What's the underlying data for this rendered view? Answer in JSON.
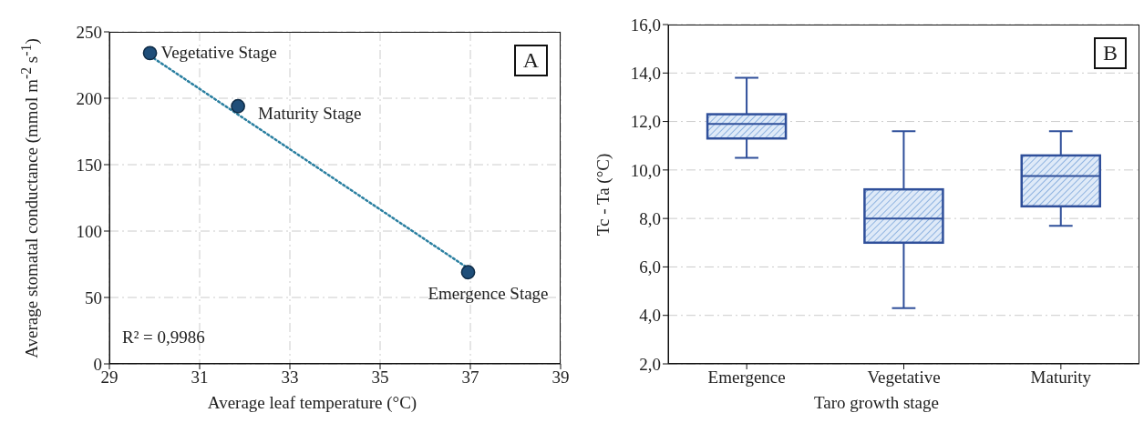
{
  "chart_data": [
    {
      "type": "scatter",
      "xlabel": "Average leaf temperature (°C)",
      "ylabel": "Average stomatal conductance (mmol m$^{-2}$ s$^{-1}$)",
      "xlim": [
        29,
        39
      ],
      "xticks": [
        29,
        31,
        33,
        35,
        37,
        39
      ],
      "ylim": [
        0,
        250
      ],
      "yticks": [
        0,
        50,
        100,
        150,
        200,
        250
      ],
      "grid": true,
      "series": [
        {
          "type": "scatter",
          "x": [
            29.9,
            31.85,
            36.95
          ],
          "values": [
            234,
            194,
            69
          ],
          "color": "#1f4e79",
          "marker": "circle"
        },
        {
          "type": "line",
          "x": [
            29.9,
            36.95
          ],
          "values": [
            232,
            72
          ],
          "color": "#2a7fa0",
          "line_style": "dotted",
          "marker": "none"
        }
      ],
      "annotations": [
        {
          "text": "Vegetative Stage",
          "x": 29.9,
          "y": 234
        },
        {
          "text": "Maturity Stage",
          "x": 31.85,
          "y": 194
        },
        {
          "text": "Emergence Stage",
          "x": 36.95,
          "y": 69
        },
        "R² = 0,9986",
        "A"
      ]
    },
    {
      "type": "box",
      "xlabel": "Taro growth stage",
      "ylabel": "Tc - Ta (°C)",
      "categories": [
        "Emergence",
        "Vegetative",
        "Maturity"
      ],
      "color": "#2f4f9a",
      "ylim": [
        2,
        16
      ],
      "yticks": [
        {
          "value": 2,
          "label": "2,0"
        },
        {
          "value": 4,
          "label": "4,0"
        },
        {
          "value": 6,
          "label": "6,0"
        },
        {
          "value": 8,
          "label": "8,0"
        },
        {
          "value": 10,
          "label": "10,0"
        },
        {
          "value": 12,
          "label": "12,0"
        },
        {
          "value": 14,
          "label": "14,0"
        },
        {
          "value": 16,
          "label": "16,0"
        }
      ],
      "grid": "y",
      "boxes": [
        {
          "low": 10.5,
          "q1": 11.3,
          "median": 11.9,
          "q3": 12.3,
          "high": 13.8
        },
        {
          "low": 4.3,
          "q1": 7.0,
          "median": 8.0,
          "q3": 9.2,
          "high": 11.6
        },
        {
          "low": 7.7,
          "q1": 8.5,
          "median": 9.75,
          "q3": 10.6,
          "high": 11.6
        }
      ],
      "annotations": [
        "B"
      ]
    }
  ]
}
